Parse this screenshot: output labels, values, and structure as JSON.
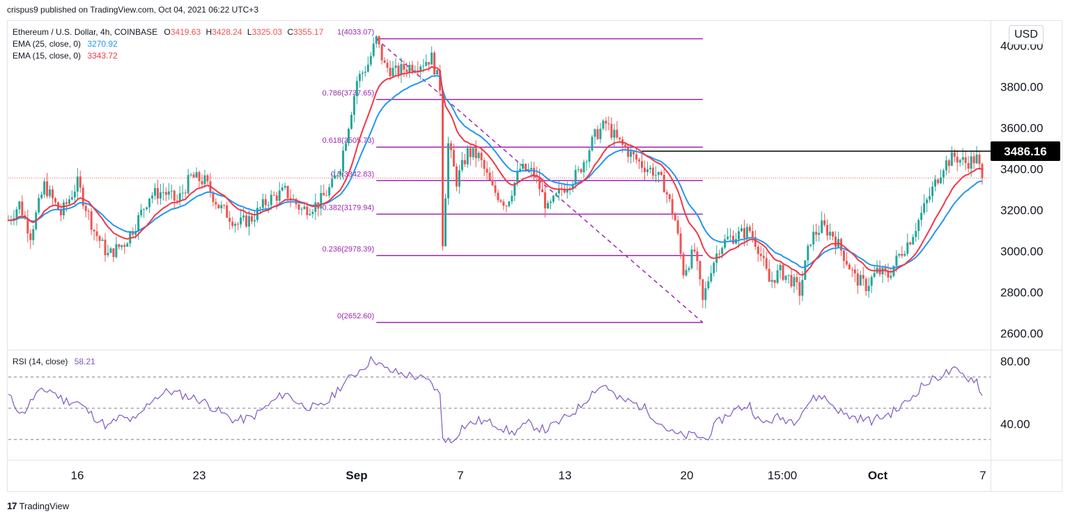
{
  "header": {
    "published_text": "crispus9 published on TradingView.com, Oct 04, 2021 06:22 UTC+3"
  },
  "legend": {
    "symbol_text": "Ethereum / U.S. Dollar, 4h, COINBASE",
    "ohlc": [
      {
        "label": "O",
        "value": "3419.63"
      },
      {
        "label": "H",
        "value": "3428.24"
      },
      {
        "label": "L",
        "value": "3325.03"
      },
      {
        "label": "C",
        "value": "3355.17"
      }
    ],
    "ema25_label": "EMA (25, close, 0)",
    "ema25_value": "3270.92",
    "ema15_label": "EMA (15, close, 0)",
    "ema15_value": "3343.72",
    "rsi_label": "RSI (14, close)",
    "rsi_value": "58.21"
  },
  "currency_button": "USD",
  "footer": {
    "brand": "TradingView",
    "logo_glyph": "17"
  },
  "colors": {
    "up": "#26a69a",
    "down": "#ef5350",
    "ema25": "#2196f3",
    "ema15": "#f23645",
    "fib": "#9c27b0",
    "rsi": "#7e57c2",
    "level_line": "#000000"
  },
  "chart_data": [
    {
      "type": "candlestick",
      "title": "Ethereum / U.S. Dollar, 4h, COINBASE",
      "y_axis_ticks": [
        "2600.00",
        "2800.00",
        "3000.00",
        "3200.00",
        "3400.00",
        "3600.00",
        "3800.00",
        "4000.00"
      ],
      "ylim": [
        2520,
        4120
      ],
      "x_axis_ticks": [
        "16",
        "23",
        "Sep",
        "7",
        "13",
        "20",
        "15:00",
        "Oct",
        "7"
      ],
      "price_path": [
        [
          0,
          3150
        ],
        [
          4,
          3230
        ],
        [
          8,
          3080
        ],
        [
          13,
          3320
        ],
        [
          19,
          3180
        ],
        [
          25,
          3330
        ],
        [
          31,
          3100
        ],
        [
          36,
          2980
        ],
        [
          42,
          3040
        ],
        [
          46,
          3130
        ],
        [
          51,
          3270
        ],
        [
          56,
          3290
        ],
        [
          61,
          3240
        ],
        [
          66,
          3360
        ],
        [
          71,
          3340
        ],
        [
          76,
          3220
        ],
        [
          83,
          3130
        ],
        [
          88,
          3160
        ],
        [
          94,
          3250
        ],
        [
          100,
          3290
        ],
        [
          106,
          3200
        ],
        [
          112,
          3230
        ],
        [
          117,
          3320
        ],
        [
          120,
          3420
        ],
        [
          123,
          3620
        ],
        [
          126,
          3830
        ],
        [
          130,
          3910
        ],
        [
          133,
          4030
        ],
        [
          136,
          3900
        ],
        [
          140,
          3870
        ],
        [
          145,
          3900
        ],
        [
          150,
          3920
        ],
        [
          153,
          3940
        ],
        [
          156,
          3800
        ],
        [
          157,
          3050
        ],
        [
          159,
          3520
        ],
        [
          162,
          3340
        ],
        [
          166,
          3480
        ],
        [
          170,
          3460
        ],
        [
          175,
          3300
        ],
        [
          180,
          3230
        ],
        [
          185,
          3400
        ],
        [
          190,
          3380
        ],
        [
          195,
          3200
        ],
        [
          200,
          3300
        ],
        [
          206,
          3380
        ],
        [
          212,
          3560
        ],
        [
          216,
          3620
        ],
        [
          220,
          3540
        ],
        [
          225,
          3470
        ],
        [
          229,
          3420
        ],
        [
          233,
          3390
        ],
        [
          237,
          3320
        ],
        [
          241,
          3150
        ],
        [
          244,
          2900
        ],
        [
          248,
          3000
        ],
        [
          251,
          2750
        ],
        [
          254,
          2920
        ],
        [
          257,
          3020
        ],
        [
          260,
          3060
        ],
        [
          264,
          3080
        ],
        [
          268,
          3100
        ],
        [
          271,
          3020
        ],
        [
          275,
          2850
        ],
        [
          279,
          2900
        ],
        [
          283,
          2860
        ],
        [
          286,
          2800
        ],
        [
          290,
          3060
        ],
        [
          294,
          3120
        ],
        [
          298,
          3080
        ],
        [
          302,
          2980
        ],
        [
          306,
          2870
        ],
        [
          310,
          2830
        ],
        [
          314,
          2900
        ],
        [
          318,
          2880
        ],
        [
          322,
          2980
        ],
        [
          326,
          3060
        ],
        [
          330,
          3180
        ],
        [
          334,
          3300
        ],
        [
          338,
          3420
        ],
        [
          342,
          3460
        ],
        [
          346,
          3430
        ],
        [
          350,
          3450
        ],
        [
          352,
          3355
        ]
      ],
      "ema15_last": 3343.72,
      "ema25_last": 3270.92,
      "horizontal_level": {
        "value": 3486.16,
        "label": "3486.16"
      },
      "fibonacci": [
        {
          "level": "1",
          "price": 4033.07,
          "label": "1(4033.07)"
        },
        {
          "level": "0.786",
          "price": 3737.65,
          "label": "0.786(3737.65)"
        },
        {
          "level": "0.618",
          "price": 3505.73,
          "label": "0.618(3505.73)"
        },
        {
          "level": "0.5",
          "price": 3342.83,
          "label": "0.5(3342.83)"
        },
        {
          "level": "0.382",
          "price": 3179.94,
          "label": "0.382(3179.94)"
        },
        {
          "level": "0.236",
          "price": 2978.39,
          "label": "0.236(2978.39)"
        },
        {
          "level": "0",
          "price": 2652.6,
          "label": "0(2652.60)"
        }
      ],
      "last_price_reference": 3355.17
    },
    {
      "type": "line",
      "title": "RSI (14, close)",
      "y_axis_ticks": [
        "40.00",
        "80.00"
      ],
      "ylim": [
        17,
        87
      ],
      "bands": [
        70,
        50,
        30
      ],
      "rsi_path": [
        [
          0,
          58
        ],
        [
          5,
          46
        ],
        [
          10,
          59
        ],
        [
          15,
          62
        ],
        [
          20,
          55
        ],
        [
          25,
          54
        ],
        [
          30,
          46
        ],
        [
          36,
          38
        ],
        [
          40,
          44
        ],
        [
          46,
          42
        ],
        [
          52,
          56
        ],
        [
          58,
          61
        ],
        [
          64,
          58
        ],
        [
          70,
          55
        ],
        [
          76,
          48
        ],
        [
          82,
          42
        ],
        [
          88,
          44
        ],
        [
          94,
          52
        ],
        [
          100,
          60
        ],
        [
          106,
          52
        ],
        [
          112,
          50
        ],
        [
          116,
          55
        ],
        [
          120,
          64
        ],
        [
          124,
          70
        ],
        [
          128,
          76
        ],
        [
          132,
          82
        ],
        [
          136,
          75
        ],
        [
          142,
          72
        ],
        [
          148,
          70
        ],
        [
          153,
          66
        ],
        [
          156,
          58
        ],
        [
          157,
          32
        ],
        [
          160,
          28
        ],
        [
          164,
          38
        ],
        [
          170,
          42
        ],
        [
          176,
          40
        ],
        [
          182,
          34
        ],
        [
          188,
          40
        ],
        [
          194,
          36
        ],
        [
          200,
          42
        ],
        [
          206,
          50
        ],
        [
          212,
          62
        ],
        [
          216,
          65
        ],
        [
          220,
          56
        ],
        [
          225,
          54
        ],
        [
          230,
          50
        ],
        [
          236,
          40
        ],
        [
          240,
          34
        ],
        [
          244,
          32
        ],
        [
          248,
          33
        ],
        [
          252,
          30
        ],
        [
          256,
          40
        ],
        [
          260,
          46
        ],
        [
          264,
          50
        ],
        [
          268,
          52
        ],
        [
          272,
          40
        ],
        [
          278,
          44
        ],
        [
          284,
          42
        ],
        [
          290,
          55
        ],
        [
          294,
          58
        ],
        [
          298,
          52
        ],
        [
          302,
          46
        ],
        [
          306,
          44
        ],
        [
          312,
          42
        ],
        [
          318,
          46
        ],
        [
          322,
          50
        ],
        [
          326,
          56
        ],
        [
          330,
          64
        ],
        [
          334,
          68
        ],
        [
          338,
          72
        ],
        [
          342,
          74
        ],
        [
          346,
          70
        ],
        [
          350,
          68
        ],
        [
          352,
          58.21
        ]
      ]
    }
  ]
}
